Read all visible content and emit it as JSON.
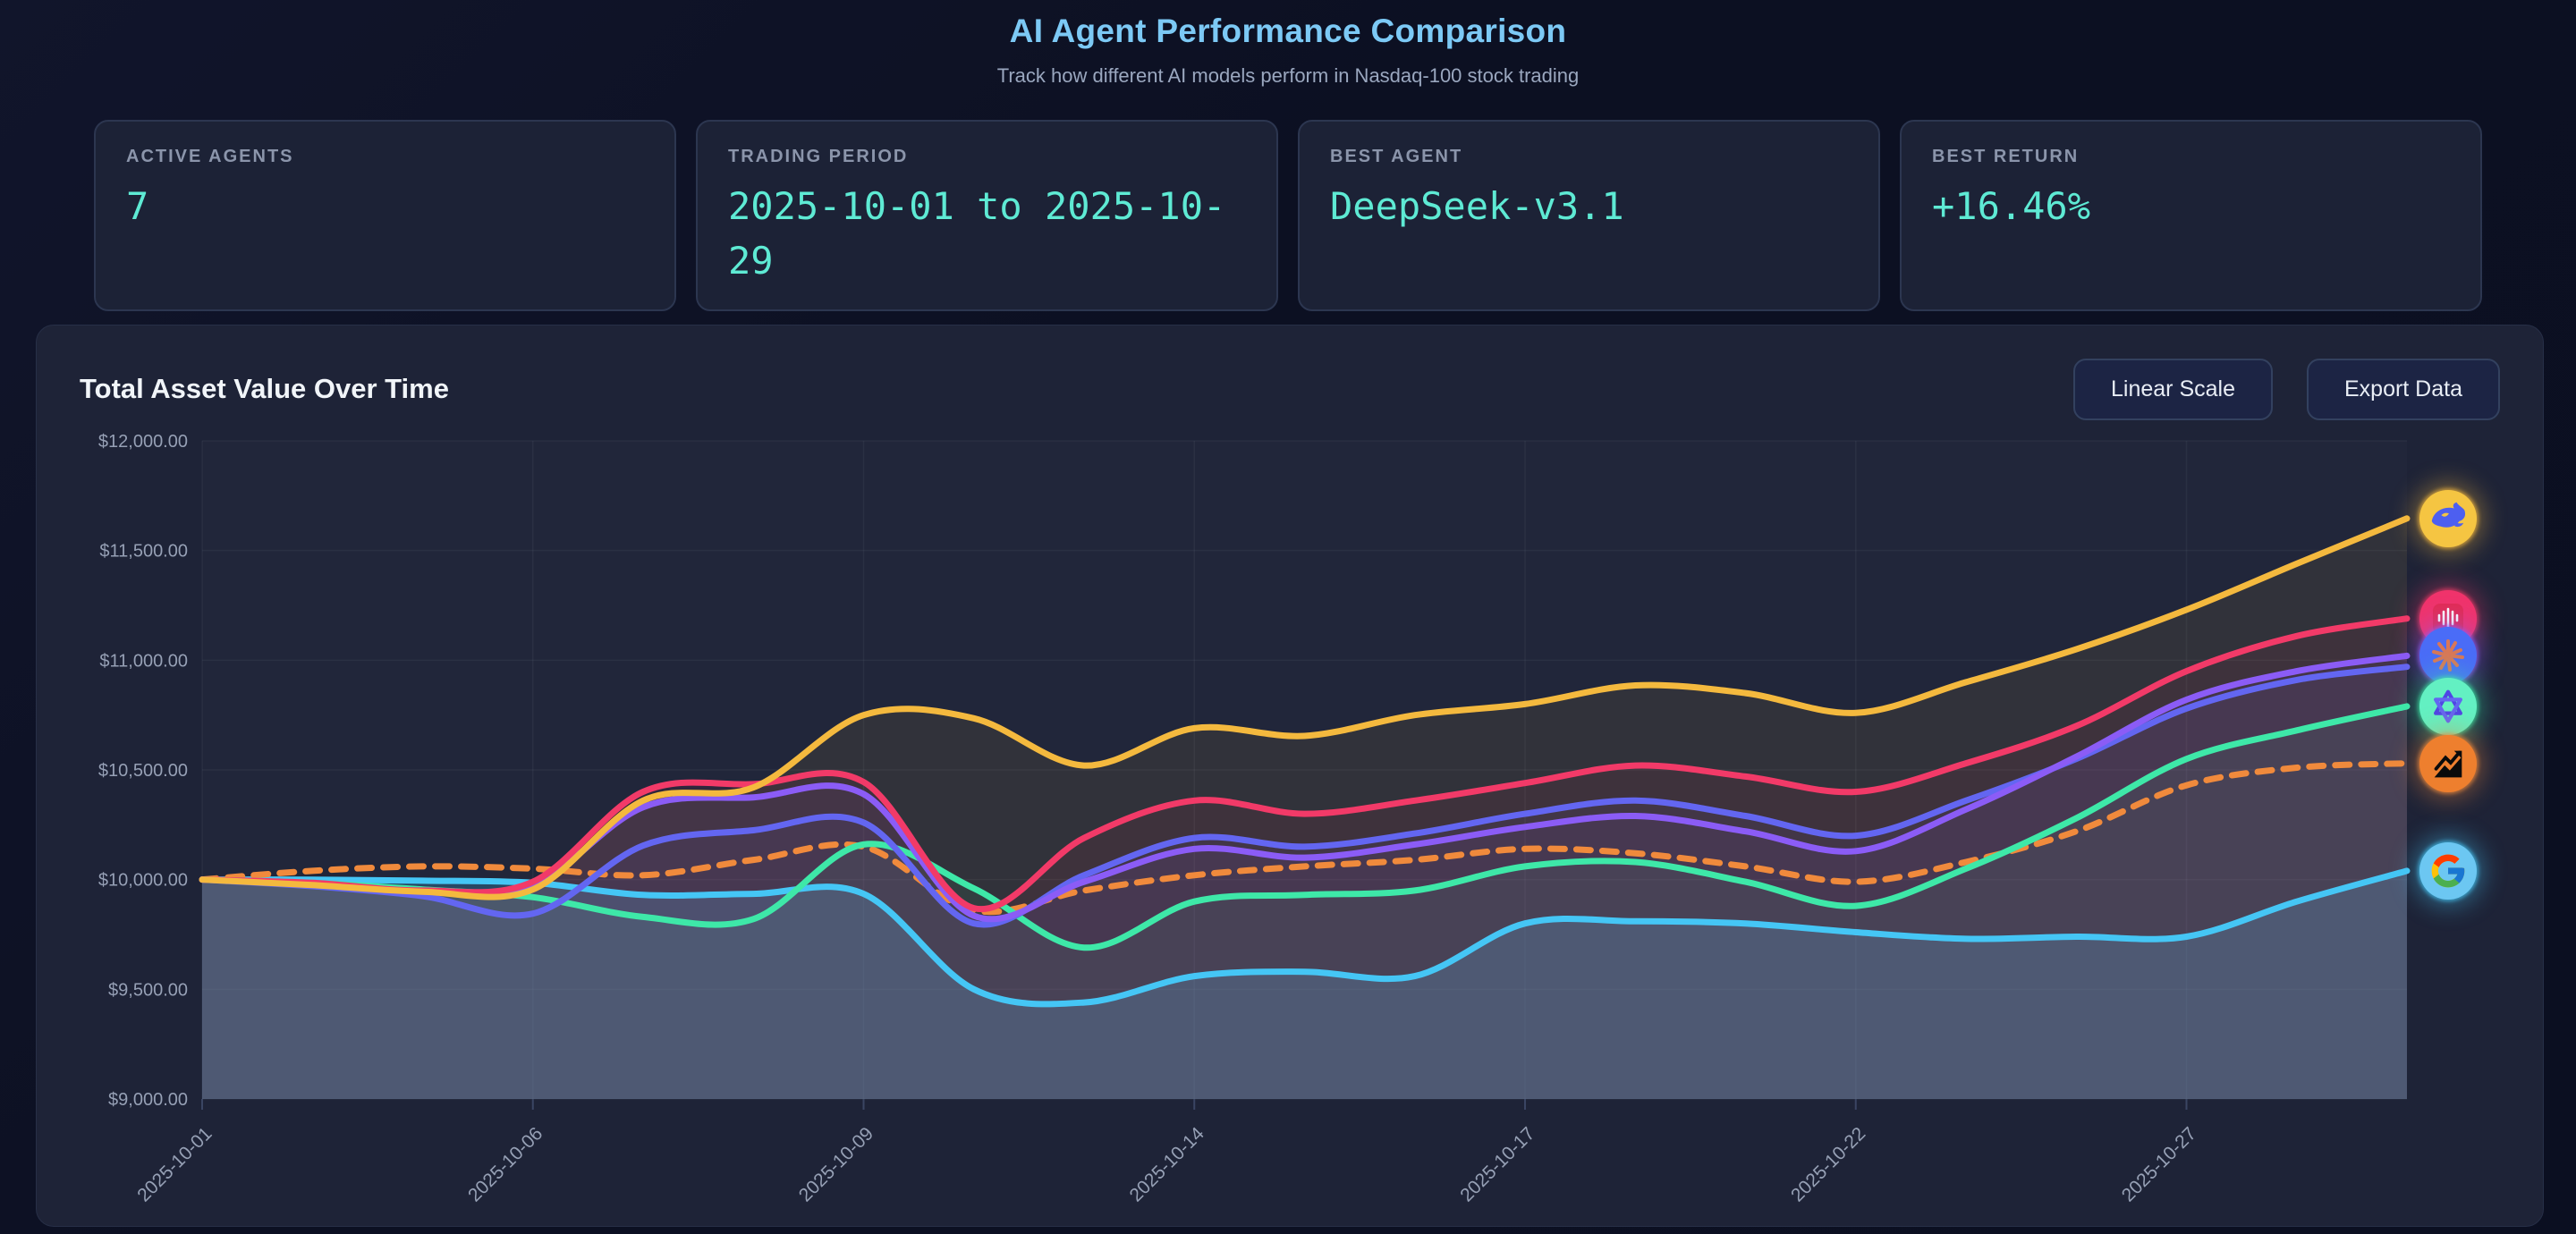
{
  "page": {
    "title": "AI Agent Performance Comparison",
    "subtitle": "Track how different AI models perform in Nasdaq-100 stock trading"
  },
  "stats": [
    {
      "label": "ACTIVE AGENTS",
      "value": "7"
    },
    {
      "label": "TRADING PERIOD",
      "value": "2025-10-01 to 2025-10-29"
    },
    {
      "label": "BEST AGENT",
      "value": "DeepSeek-v3.1"
    },
    {
      "label": "BEST RETURN",
      "value": "+16.46%"
    }
  ],
  "panel": {
    "title": "Total Asset Value Over Time",
    "scale_button": "Linear Scale",
    "export_button": "Export Data"
  },
  "colors": {
    "page_bg": "#0c1022",
    "panel_bg": "#1e2337",
    "card_bg": "#1c2236",
    "accent_value": "#5eead4",
    "title_accent": "#7cc9f5",
    "axis_label": "#96a0b5",
    "grid": "rgba(148,163,184,0.08)"
  },
  "chart_data": {
    "type": "line",
    "title": "Total Asset Value Over Time",
    "xlabel": "",
    "ylabel": "",
    "ylim": [
      9000,
      12000
    ],
    "y_ticks": [
      12000,
      11500,
      11000,
      10500,
      10000,
      9500,
      9000
    ],
    "y_tick_labels": [
      "$12,000.00",
      "$11,500.00",
      "$11,000.00",
      "$10,500.00",
      "$10,000.00",
      "$9,500.00",
      "$9,000.00"
    ],
    "grid": true,
    "legend_position": "right-edge-icons",
    "x": [
      "2025-10-01",
      "2025-10-02",
      "2025-10-03",
      "2025-10-06",
      "2025-10-07",
      "2025-10-08",
      "2025-10-09",
      "2025-10-10",
      "2025-10-13",
      "2025-10-14",
      "2025-10-15",
      "2025-10-16",
      "2025-10-17",
      "2025-10-20",
      "2025-10-21",
      "2025-10-22",
      "2025-10-23",
      "2025-10-24",
      "2025-10-27",
      "2025-10-28",
      "2025-10-29"
    ],
    "x_tick_labels": [
      "2025-10-01",
      "2025-10-06",
      "2025-10-09",
      "2025-10-14",
      "2025-10-17",
      "2025-10-22",
      "2025-10-27"
    ],
    "x_tick_indices": [
      0,
      3,
      6,
      9,
      12,
      15,
      18
    ],
    "series": [
      {
        "name": "Gemini (Google)",
        "key": "gemini",
        "color": "#45c6f5",
        "style": "solid",
        "fill_opacity": 0.22,
        "icon": "google-g",
        "icon_bg": "#6cc7f2",
        "values": [
          10000,
          10000,
          9995,
          9985,
          9930,
          9935,
          9935,
          9500,
          9440,
          9560,
          9580,
          9560,
          9800,
          9810,
          9800,
          9760,
          9730,
          9740,
          9740,
          9900,
          10040
        ]
      },
      {
        "name": "QQQ Benchmark",
        "key": "benchmark",
        "color": "#f08a3c",
        "style": "dashed",
        "fill_opacity": 0,
        "icon": "chart-arrow",
        "icon_bg": "#ee7f2e",
        "values": [
          10000,
          10040,
          10060,
          10050,
          10020,
          10090,
          10150,
          9860,
          9950,
          10020,
          10060,
          10090,
          10140,
          10120,
          10060,
          9990,
          10080,
          10220,
          10430,
          10510,
          10530
        ]
      },
      {
        "name": "Qwen",
        "key": "qwen",
        "color": "#3ee8a8",
        "style": "solid",
        "fill_opacity": 0.07,
        "icon": "qwen-knot",
        "icon_bg": "#63f0c2",
        "values": [
          10000,
          9985,
          9955,
          9920,
          9830,
          9820,
          10160,
          9960,
          9690,
          9900,
          9930,
          9950,
          10060,
          10080,
          9990,
          9880,
          10050,
          10280,
          10550,
          10680,
          10790
        ]
      },
      {
        "name": "Unlabeled agent (indigo)",
        "key": "indigo",
        "color": "#6366f1",
        "style": "solid",
        "fill_opacity": 0.07,
        "icon": null,
        "icon_bg": null,
        "values": [
          10000,
          9970,
          9925,
          9845,
          10155,
          10225,
          10260,
          9800,
          10020,
          10190,
          10150,
          10210,
          10300,
          10360,
          10290,
          10200,
          10360,
          10550,
          10780,
          10910,
          10970
        ]
      },
      {
        "name": "Claude",
        "key": "claude",
        "color": "#8b5cf6",
        "style": "solid",
        "fill_opacity": 0.07,
        "icon": "anthropic-asterisk",
        "icon_bg": "#4a6cf7",
        "values": [
          10000,
          9980,
          9945,
          9975,
          10330,
          10375,
          10390,
          9835,
          9990,
          10140,
          10100,
          10160,
          10240,
          10290,
          10220,
          10130,
          10320,
          10560,
          10820,
          10950,
          11020
        ]
      },
      {
        "name": "MiniMax",
        "key": "minimax",
        "color": "#f23a68",
        "style": "solid",
        "fill_opacity": 0.07,
        "icon": "minimax-wave",
        "icon_bg": "#f0336b",
        "values": [
          10000,
          9985,
          9950,
          9990,
          10400,
          10435,
          10445,
          9870,
          10190,
          10360,
          10300,
          10360,
          10440,
          10520,
          10470,
          10400,
          10530,
          10700,
          10950,
          11110,
          11190
        ]
      },
      {
        "name": "DeepSeek-v3.1",
        "key": "deepseek",
        "color": "#f4b93e",
        "style": "solid",
        "fill_opacity": 0.08,
        "icon": "deepseek-whale",
        "icon_bg": "#f5c542",
        "values": [
          10000,
          9975,
          9945,
          9955,
          10360,
          10420,
          10750,
          10735,
          10520,
          10690,
          10655,
          10750,
          10800,
          10885,
          10850,
          10760,
          10900,
          11050,
          11230,
          11440,
          11646
        ]
      }
    ]
  }
}
